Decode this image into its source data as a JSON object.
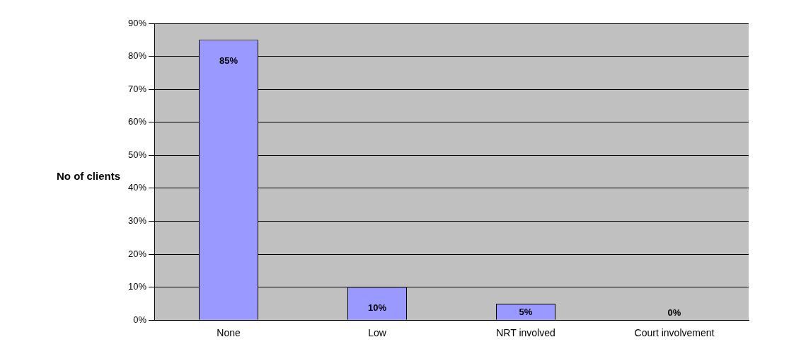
{
  "chart_data": {
    "type": "bar",
    "ylabel": "No of clients",
    "categories": [
      "None",
      "Low",
      "NRT involved",
      "Court involvement"
    ],
    "values": [
      85,
      10,
      5,
      0
    ],
    "color": "#9999ff",
    "value_labels": [
      "85%",
      "10%",
      "5%",
      "0%"
    ],
    "ylim": [
      0,
      90
    ],
    "yticks": [
      {
        "value": 0,
        "label": "0%"
      },
      {
        "value": 10,
        "label": "10%"
      },
      {
        "value": 20,
        "label": "20%"
      },
      {
        "value": 30,
        "label": "30%"
      },
      {
        "value": 40,
        "label": "40%"
      },
      {
        "value": 50,
        "label": "50%"
      },
      {
        "value": 60,
        "label": "60%"
      },
      {
        "value": 70,
        "label": "70%"
      },
      {
        "value": 80,
        "label": "80%"
      },
      {
        "value": 90,
        "label": "90%"
      }
    ],
    "grid": "y",
    "legend": false
  }
}
